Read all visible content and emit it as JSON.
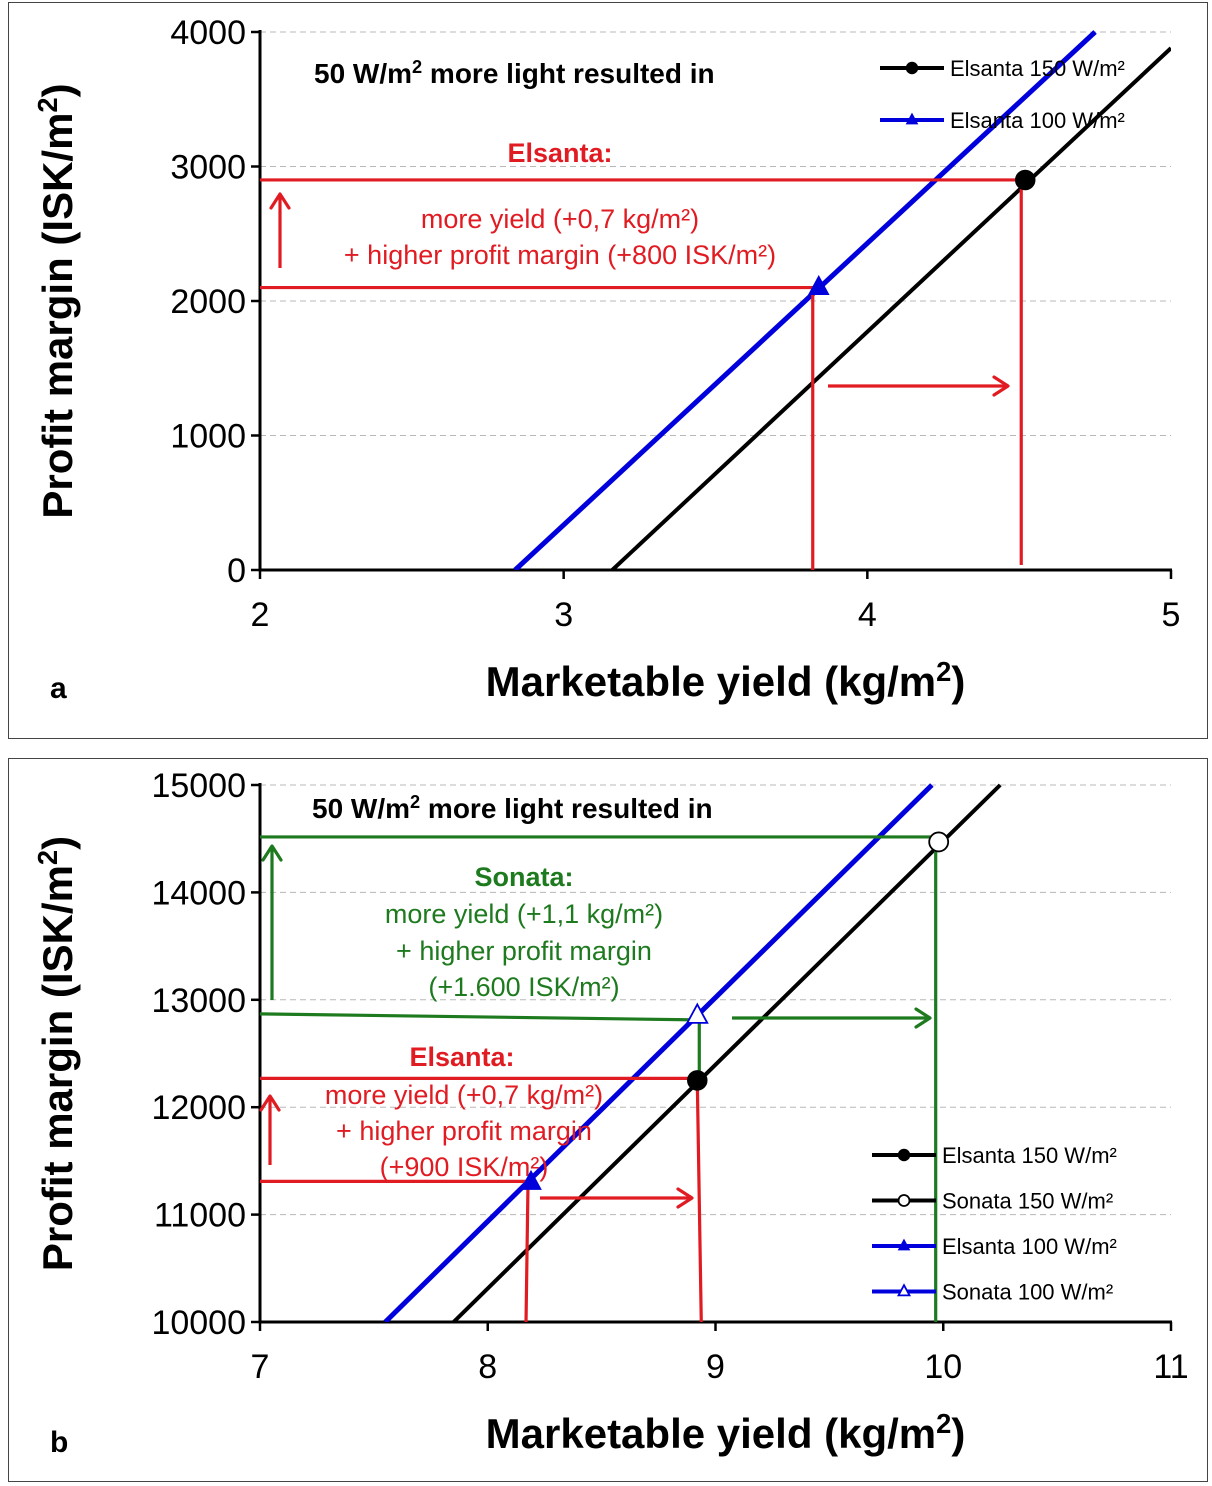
{
  "chart_data": [
    {
      "type": "line",
      "panel_label": "a",
      "xlabel": "Marketable yield (kg/m²)",
      "ylabel": "Profit margin  (ISK/m²)",
      "xlim": [
        2,
        5
      ],
      "ylim": [
        0,
        4000
      ],
      "xticks": [
        "2",
        "3",
        "4",
        "5"
      ],
      "yticks": [
        "0",
        "1000",
        "2000",
        "3000",
        "4000"
      ],
      "grid": true,
      "legend_position": "top-right",
      "header": "50 W/m² more light resulted in",
      "series": [
        {
          "name": "Elsanta 150 W/m²",
          "color": "#000000",
          "marker": "filled-circle",
          "x": [
            3.16,
            5.0
          ],
          "y": [
            0,
            3880
          ]
        },
        {
          "name": "Elsanta 100 W/m²",
          "color": "#0000dd",
          "marker": "filled-triangle",
          "x": [
            2.84,
            4.75
          ],
          "y": [
            0,
            4000
          ]
        }
      ],
      "points": [
        {
          "series": "Elsanta 150 W/m²",
          "x": 4.52,
          "y": 2900
        },
        {
          "series": "Elsanta 100 W/m²",
          "x": 3.84,
          "y": 2100
        }
      ],
      "annotations": [
        {
          "title": "Elsanta:",
          "lines": [
            "more yield (+0,7 kg/m²)",
            "+ higher profit margin (+800 ISK/m²)"
          ],
          "color": "#e11b22"
        }
      ]
    },
    {
      "type": "line",
      "panel_label": "b",
      "xlabel": "Marketable yield (kg/m²)",
      "ylabel": "Profit margin  (ISK/m²)",
      "xlim": [
        7,
        11
      ],
      "ylim": [
        10000,
        15000
      ],
      "xticks": [
        "7",
        "8",
        "9",
        "10",
        "11"
      ],
      "yticks": [
        "10000",
        "11000",
        "12000",
        "13000",
        "14000",
        "15000"
      ],
      "grid": true,
      "legend_position": "bottom-right",
      "header": "50 W/m² more light resulted in",
      "series": [
        {
          "name": "Elsanta 150 W/m²",
          "color": "#000000",
          "marker": "filled-circle",
          "x": [
            7.85,
            10.25
          ],
          "y": [
            10000,
            15000
          ]
        },
        {
          "name": "Sonata 150 W/m²",
          "color": "#000000",
          "marker": "open-circle",
          "x": [
            7.85,
            10.25
          ],
          "y": [
            10000,
            15000
          ]
        },
        {
          "name": "Elsanta 100 W/m²",
          "color": "#0000dd",
          "marker": "filled-triangle",
          "x": [
            7.55,
            9.95
          ],
          "y": [
            10000,
            15000
          ]
        },
        {
          "name": "Sonata 100 W/m²",
          "color": "#0000dd",
          "marker": "open-triangle",
          "x": [
            7.55,
            9.95
          ],
          "y": [
            10000,
            15000
          ]
        }
      ],
      "points": [
        {
          "series": "Elsanta 150 W/m²",
          "x": 8.92,
          "y": 12250
        },
        {
          "series": "Sonata 150 W/m²",
          "x": 9.98,
          "y": 14470
        },
        {
          "series": "Elsanta 100 W/m²",
          "x": 8.19,
          "y": 11300
        },
        {
          "series": "Sonata 100 W/m²",
          "x": 8.92,
          "y": 12850
        }
      ],
      "annotations": [
        {
          "title": "Sonata:",
          "lines": [
            "more yield (+1,1 kg/m²)",
            "+ higher profit margin",
            "(+1.600 ISK/m²)"
          ],
          "color": "#1e7a1e"
        },
        {
          "title": "Elsanta:",
          "lines": [
            "more yield (+0,7 kg/m²)",
            "+ higher profit margin",
            "(+900 ISK/m²)"
          ],
          "color": "#e11b22"
        }
      ]
    }
  ]
}
